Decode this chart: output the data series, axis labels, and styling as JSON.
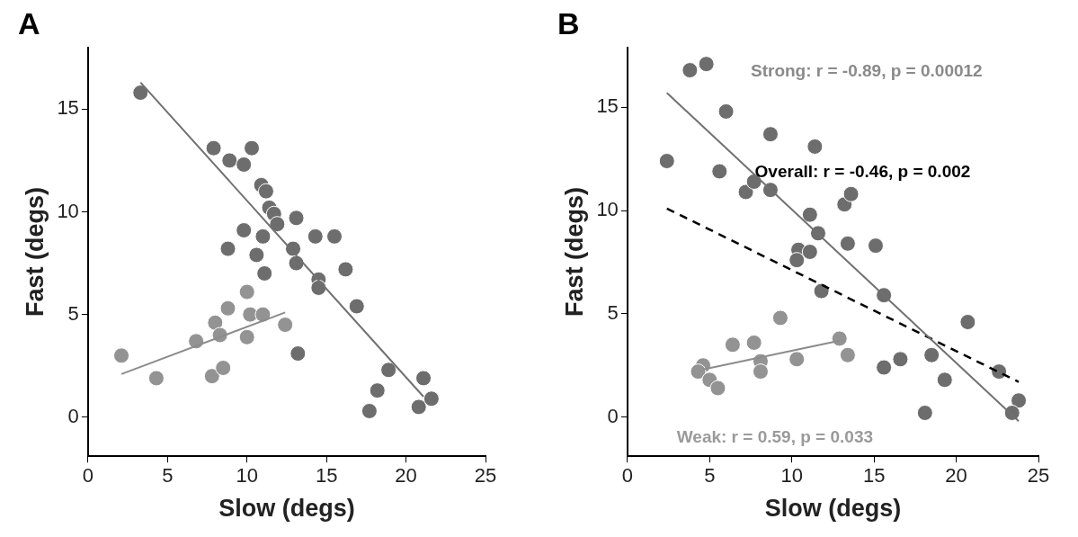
{
  "chart_data": [
    {
      "type": "scatter",
      "title": "A",
      "xlabel": "Slow (degs)",
      "ylabel": "Fast (degs)",
      "xlim": [
        0,
        25
      ],
      "xticks": [
        0,
        5,
        10,
        15,
        20,
        25
      ],
      "ylim": [
        -1.9,
        18
      ],
      "yticks": [
        0,
        5,
        10,
        15
      ],
      "grid": false,
      "legend": false,
      "marker": "circle",
      "series": [
        {
          "type": "scatter",
          "color": "#6d6d6d",
          "x": [
            3.3,
            7.9,
            8.9,
            9.8,
            10.3,
            10.9,
            11.2,
            11.4,
            11.7,
            11.9,
            13.1,
            9.8,
            11.0,
            14.3,
            15.5,
            8.8,
            10.6,
            12.9,
            13.1,
            11.1,
            16.2,
            14.5,
            14.5,
            16.9,
            13.2,
            18.9,
            18.2,
            17.7,
            21.1,
            20.8,
            21.6
          ],
          "values": [
            15.8,
            13.1,
            12.5,
            12.3,
            13.1,
            11.3,
            11.0,
            10.2,
            9.9,
            9.4,
            9.7,
            9.1,
            8.8,
            8.8,
            8.8,
            8.2,
            7.9,
            8.2,
            7.5,
            7.0,
            7.2,
            6.7,
            6.3,
            5.4,
            3.1,
            2.3,
            1.3,
            0.3,
            1.9,
            0.5,
            0.9
          ]
        },
        {
          "type": "scatter",
          "color": "#939393",
          "x": [
            2.1,
            4.3,
            6.8,
            8.0,
            8.3,
            8.8,
            10.0,
            10.2,
            11.0,
            10.0,
            12.4,
            7.8,
            8.5
          ],
          "values": [
            3.0,
            1.9,
            3.7,
            4.6,
            4.0,
            5.3,
            6.1,
            5.0,
            5.0,
            3.9,
            4.5,
            2.0,
            2.4
          ]
        },
        {
          "type": "line",
          "color": "#707070",
          "marker": "none",
          "line_style": "solid",
          "x": [
            3.3,
            21.1
          ],
          "values": [
            16.3,
            1.0
          ]
        },
        {
          "type": "line",
          "color": "#8c8c8c",
          "marker": "none",
          "line_style": "solid",
          "x": [
            2.1,
            12.4
          ],
          "values": [
            2.1,
            5.1
          ]
        }
      ]
    },
    {
      "type": "scatter",
      "title": "B",
      "xlabel": "Slow (degs)",
      "ylabel": "Fast (degs)",
      "xlim": [
        0,
        25
      ],
      "xticks": [
        0,
        5,
        10,
        15,
        20,
        25
      ],
      "ylim": [
        -1.9,
        17.9
      ],
      "yticks": [
        0,
        5,
        10,
        15
      ],
      "grid": false,
      "legend": false,
      "marker": "circle",
      "annotations": [
        "Strong: r = -0.89, p = 0.00012",
        "Overall: r = -0.46, p = 0.002",
        "Weak: r = 0.59, p = 0.033"
      ],
      "series": [
        {
          "type": "scatter",
          "color": "#6d6d6d",
          "x": [
            3.8,
            4.8,
            6.0,
            8.7,
            11.4,
            2.4,
            5.6,
            7.2,
            7.7,
            8.7,
            13.2,
            13.6,
            11.1,
            11.6,
            13.4,
            15.1,
            10.4,
            11.1,
            10.3,
            11.8,
            15.6,
            20.7,
            18.5,
            16.6,
            15.6,
            19.3,
            22.6,
            23.8,
            23.4,
            18.1
          ],
          "values": [
            16.8,
            17.1,
            14.8,
            13.7,
            13.1,
            12.4,
            11.9,
            10.9,
            11.4,
            11.0,
            10.3,
            10.8,
            9.8,
            8.9,
            8.4,
            8.3,
            8.1,
            8.0,
            7.6,
            6.1,
            5.9,
            4.6,
            3.0,
            2.8,
            2.4,
            1.8,
            2.2,
            0.8,
            0.2,
            0.2
          ]
        },
        {
          "type": "scatter",
          "color": "#939393",
          "x": [
            9.3,
            12.9,
            6.4,
            7.7,
            10.3,
            13.4,
            8.1,
            8.1,
            4.6,
            4.3,
            5.0,
            5.5
          ],
          "values": [
            4.8,
            3.8,
            3.5,
            3.6,
            2.8,
            3.0,
            2.7,
            2.2,
            2.5,
            2.2,
            1.8,
            1.4
          ]
        },
        {
          "type": "line",
          "color": "#707070",
          "marker": "none",
          "line_style": "solid",
          "x": [
            2.4,
            23.8
          ],
          "values": [
            15.7,
            -0.2
          ]
        },
        {
          "type": "line",
          "color": "#8c8c8c",
          "marker": "none",
          "line_style": "solid",
          "x": [
            4.6,
            12.9
          ],
          "values": [
            2.3,
            3.7
          ]
        },
        {
          "type": "line",
          "color": "#000000",
          "marker": "none",
          "line_style": "dashed",
          "x": [
            2.4,
            23.8
          ],
          "values": [
            10.1,
            1.7
          ]
        }
      ]
    }
  ]
}
